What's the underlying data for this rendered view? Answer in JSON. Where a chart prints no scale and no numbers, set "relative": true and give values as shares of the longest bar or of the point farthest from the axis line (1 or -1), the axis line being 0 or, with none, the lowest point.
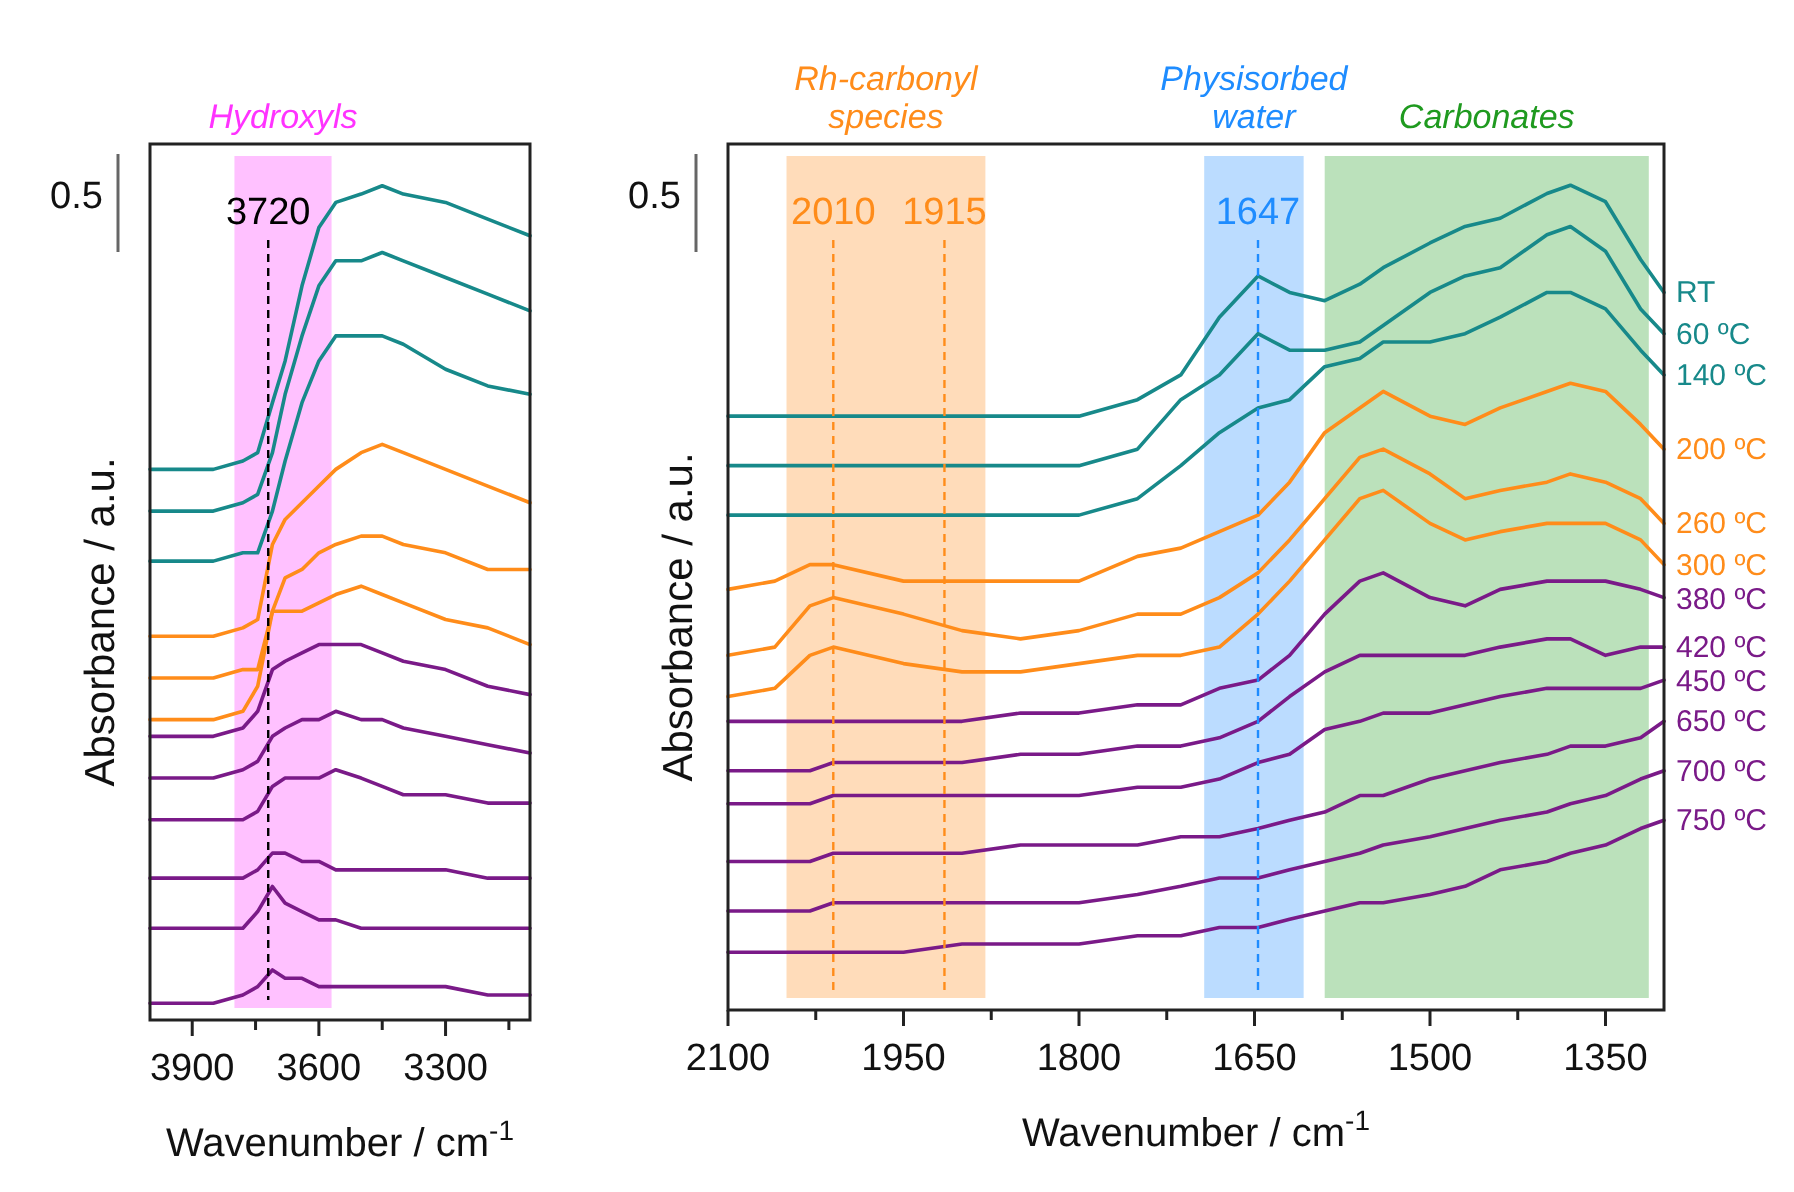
{
  "chart_data": [
    {
      "type": "line",
      "relative": true,
      "ylabel": "Absorbance / a.u.",
      "xlabel": "Wavenumber / cm$^{-1}$",
      "xlim": [
        4000,
        3100
      ],
      "xticks": [
        3900,
        {
          "value": 3750,
          "label": null
        },
        3600,
        {
          "value": 3450,
          "label": null
        },
        3300,
        {
          "value": 3150,
          "label": null
        }
      ],
      "x": [
        4000,
        3850,
        3780,
        3745,
        3710,
        3680,
        3640,
        3600,
        3560,
        3500,
        3450,
        3400,
        3300,
        3200,
        3100
      ],
      "series": [
        {
          "color": "#17898a",
          "values": [
            0.66,
            0.66,
            0.67,
            0.68,
            0.74,
            0.79,
            0.88,
            0.95,
            0.98,
            0.99,
            1,
            0.99,
            0.98,
            0.96,
            0.94
          ]
        },
        {
          "color": "#17898a",
          "values": [
            0.61,
            0.61,
            0.62,
            0.63,
            0.68,
            0.75,
            0.82,
            0.88,
            0.91,
            0.91,
            0.92,
            0.91,
            0.89,
            0.87,
            0.85
          ]
        },
        {
          "color": "#17898a",
          "values": [
            0.55,
            0.55,
            0.56,
            0.56,
            0.61,
            0.67,
            0.74,
            0.79,
            0.82,
            0.82,
            0.82,
            0.81,
            0.78,
            0.76,
            0.75
          ]
        },
        {
          "color": "#ff8c1a",
          "values": [
            0.46,
            0.46,
            0.47,
            0.48,
            0.57,
            0.6,
            0.62,
            0.64,
            0.66,
            0.68,
            0.69,
            0.68,
            0.66,
            0.64,
            0.62
          ]
        },
        {
          "color": "#ff8c1a",
          "values": [
            0.41,
            0.41,
            0.42,
            0.42,
            0.49,
            0.53,
            0.54,
            0.56,
            0.57,
            0.58,
            0.58,
            0.57,
            0.56,
            0.54,
            0.54
          ]
        },
        {
          "color": "#ff8c1a",
          "values": [
            0.36,
            0.36,
            0.37,
            0.4,
            0.49,
            0.49,
            0.49,
            0.5,
            0.51,
            0.52,
            0.51,
            0.5,
            0.48,
            0.47,
            0.45
          ]
        },
        {
          "color": "#7a1a88",
          "values": [
            0.34,
            0.34,
            0.35,
            0.37,
            0.42,
            0.43,
            0.44,
            0.45,
            0.45,
            0.45,
            0.44,
            0.43,
            0.42,
            0.4,
            0.39
          ]
        },
        {
          "color": "#7a1a88",
          "values": [
            0.29,
            0.29,
            0.3,
            0.31,
            0.34,
            0.35,
            0.36,
            0.36,
            0.37,
            0.36,
            0.36,
            0.35,
            0.34,
            0.33,
            0.32
          ]
        },
        {
          "color": "#7a1a88",
          "values": [
            0.24,
            0.24,
            0.24,
            0.25,
            0.28,
            0.29,
            0.29,
            0.29,
            0.3,
            0.29,
            0.28,
            0.27,
            0.27,
            0.26,
            0.26
          ]
        },
        {
          "color": "#7a1a88",
          "values": [
            0.17,
            0.17,
            0.17,
            0.18,
            0.2,
            0.2,
            0.19,
            0.19,
            0.18,
            0.18,
            0.18,
            0.18,
            0.18,
            0.17,
            0.17
          ]
        },
        {
          "color": "#7a1a88",
          "values": [
            0.11,
            0.11,
            0.11,
            0.13,
            0.16,
            0.14,
            0.13,
            0.12,
            0.12,
            0.11,
            0.11,
            0.11,
            0.11,
            0.11,
            0.11
          ]
        },
        {
          "color": "#7a1a88",
          "values": [
            0.02,
            0.02,
            0.03,
            0.04,
            0.06,
            0.05,
            0.05,
            0.04,
            0.04,
            0.04,
            0.04,
            0.04,
            0.04,
            0.03,
            0.03
          ]
        }
      ],
      "bands": [
        {
          "axis": "x",
          "from": 3800,
          "to": 3570,
          "label": "Hydroxyls",
          "color": "#ff33ff"
        }
      ],
      "ref_lines": [
        {
          "axis": "x",
          "value": 3720,
          "label": "3720",
          "color": "#000000",
          "line_style": "dashed"
        }
      ],
      "annotations": [
        "0.5"
      ]
    },
    {
      "type": "line",
      "relative": true,
      "ylabel": "Absorbance / a.u.",
      "xlabel": "Wavenumber / cm$^{-1}$",
      "xlim": [
        2100,
        1300
      ],
      "xticks": [
        2100,
        {
          "value": 2025,
          "label": null
        },
        1950,
        {
          "value": 1875,
          "label": null
        },
        1800,
        {
          "value": 1725,
          "label": null
        },
        1650,
        {
          "value": 1575,
          "label": null
        },
        1500,
        {
          "value": 1425,
          "label": null
        },
        1350
      ],
      "x": [
        2100,
        2060,
        2030,
        2010,
        1950,
        1900,
        1850,
        1800,
        1750,
        1713,
        1680,
        1647,
        1620,
        1590,
        1560,
        1540,
        1500,
        1470,
        1440,
        1400,
        1380,
        1350,
        1320,
        1300
      ],
      "series": [
        {
          "name": "RT",
          "color": "#17898a",
          "values": [
            0.72,
            0.72,
            0.72,
            0.72,
            0.72,
            0.72,
            0.72,
            0.72,
            0.74,
            0.77,
            0.84,
            0.89,
            0.87,
            0.86,
            0.88,
            0.9,
            0.93,
            0.95,
            0.96,
            0.99,
            1,
            0.98,
            0.91,
            0.87
          ]
        },
        {
          "name": "60 ºC",
          "color": "#17898a",
          "values": [
            0.66,
            0.66,
            0.66,
            0.66,
            0.66,
            0.66,
            0.66,
            0.66,
            0.68,
            0.74,
            0.77,
            0.82,
            0.8,
            0.8,
            0.81,
            0.83,
            0.87,
            0.89,
            0.9,
            0.94,
            0.95,
            0.92,
            0.85,
            0.82
          ]
        },
        {
          "name": "140 ºC",
          "color": "#17898a",
          "values": [
            0.6,
            0.6,
            0.6,
            0.6,
            0.6,
            0.6,
            0.6,
            0.6,
            0.62,
            0.66,
            0.7,
            0.73,
            0.74,
            0.78,
            0.79,
            0.81,
            0.81,
            0.82,
            0.84,
            0.87,
            0.87,
            0.85,
            0.8,
            0.77
          ]
        },
        {
          "name": "200 ºC",
          "color": "#ff8c1a",
          "values": [
            0.51,
            0.52,
            0.54,
            0.54,
            0.52,
            0.52,
            0.52,
            0.52,
            0.55,
            0.56,
            0.58,
            0.6,
            0.64,
            0.7,
            0.73,
            0.75,
            0.72,
            0.71,
            0.73,
            0.75,
            0.76,
            0.75,
            0.71,
            0.68
          ]
        },
        {
          "name": "260 ºC",
          "color": "#ff8c1a",
          "values": [
            0.43,
            0.44,
            0.49,
            0.5,
            0.48,
            0.46,
            0.45,
            0.46,
            0.48,
            0.48,
            0.5,
            0.53,
            0.57,
            0.62,
            0.67,
            0.68,
            0.65,
            0.62,
            0.63,
            0.64,
            0.65,
            0.64,
            0.62,
            0.59
          ]
        },
        {
          "name": "300 ºC",
          "color": "#ff8c1a",
          "values": [
            0.38,
            0.39,
            0.43,
            0.44,
            0.42,
            0.41,
            0.41,
            0.42,
            0.43,
            0.43,
            0.44,
            0.48,
            0.52,
            0.57,
            0.62,
            0.63,
            0.59,
            0.57,
            0.58,
            0.59,
            0.59,
            0.59,
            0.57,
            0.54
          ]
        },
        {
          "name": "380 ºC",
          "color": "#7a1a88",
          "values": [
            0.35,
            0.35,
            0.35,
            0.35,
            0.35,
            0.35,
            0.36,
            0.36,
            0.37,
            0.37,
            0.39,
            0.4,
            0.43,
            0.48,
            0.52,
            0.53,
            0.5,
            0.49,
            0.51,
            0.52,
            0.52,
            0.52,
            0.51,
            0.5
          ]
        },
        {
          "name": "420 ºC",
          "color": "#7a1a88",
          "values": [
            0.29,
            0.29,
            0.29,
            0.3,
            0.3,
            0.3,
            0.31,
            0.31,
            0.32,
            0.32,
            0.33,
            0.35,
            0.38,
            0.41,
            0.43,
            0.43,
            0.43,
            0.43,
            0.44,
            0.45,
            0.45,
            0.43,
            0.44,
            0.44
          ]
        },
        {
          "name": "450 ºC",
          "color": "#7a1a88",
          "values": [
            0.25,
            0.25,
            0.25,
            0.26,
            0.26,
            0.26,
            0.26,
            0.26,
            0.27,
            0.27,
            0.28,
            0.3,
            0.31,
            0.34,
            0.35,
            0.36,
            0.36,
            0.37,
            0.38,
            0.39,
            0.39,
            0.39,
            0.39,
            0.4
          ]
        },
        {
          "name": "650 ºC",
          "color": "#7a1a88",
          "values": [
            0.18,
            0.18,
            0.18,
            0.19,
            0.19,
            0.19,
            0.2,
            0.2,
            0.2,
            0.21,
            0.21,
            0.22,
            0.23,
            0.24,
            0.26,
            0.26,
            0.28,
            0.29,
            0.3,
            0.31,
            0.32,
            0.32,
            0.33,
            0.35
          ]
        },
        {
          "name": "700 ºC",
          "color": "#7a1a88",
          "values": [
            0.12,
            0.12,
            0.12,
            0.13,
            0.13,
            0.13,
            0.13,
            0.13,
            0.14,
            0.15,
            0.16,
            0.16,
            0.17,
            0.18,
            0.19,
            0.2,
            0.21,
            0.22,
            0.23,
            0.24,
            0.25,
            0.26,
            0.28,
            0.29
          ]
        },
        {
          "name": "750 ºC",
          "color": "#7a1a88",
          "values": [
            0.07,
            0.07,
            0.07,
            0.07,
            0.07,
            0.08,
            0.08,
            0.08,
            0.09,
            0.09,
            0.1,
            0.1,
            0.11,
            0.12,
            0.13,
            0.13,
            0.14,
            0.15,
            0.17,
            0.18,
            0.19,
            0.2,
            0.22,
            0.23
          ]
        }
      ],
      "bands": [
        {
          "axis": "x",
          "from": 2050,
          "to": 1880,
          "label": "Rh-carbonyl species",
          "color": "#ff8c1a"
        },
        {
          "axis": "x",
          "from": 1693,
          "to": 1608,
          "label": "Physisorbed water",
          "color": "#1e8cff"
        },
        {
          "axis": "x",
          "from": 1590,
          "to": 1313,
          "label": "Carbonates",
          "color": "#1f9a1f"
        }
      ],
      "ref_lines": [
        {
          "axis": "x",
          "value": 2010,
          "label": "2010",
          "color": "#ff8c1a",
          "line_style": "dashed"
        },
        {
          "axis": "x",
          "value": 1915,
          "label": "1915",
          "color": "#ff8c1a",
          "line_style": "dashed"
        },
        {
          "axis": "x",
          "value": 1647,
          "label": "1647",
          "color": "#1e8cff",
          "line_style": "dashed"
        }
      ],
      "annotations": [
        "0.5"
      ]
    }
  ]
}
